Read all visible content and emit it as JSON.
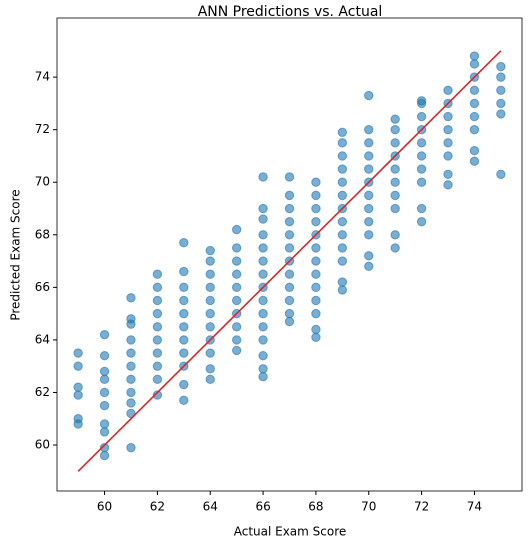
{
  "chart_data": {
    "type": "scatter",
    "title": "ANN Predictions vs. Actual",
    "xlabel": "Actual Exam Score",
    "ylabel": "Predicted Exam Score",
    "xlim": [
      58.2,
      75.8
    ],
    "ylim": [
      58.25,
      76.25
    ],
    "xticks": [
      60,
      62,
      64,
      66,
      68,
      70,
      72,
      74
    ],
    "yticks": [
      60,
      62,
      64,
      66,
      68,
      70,
      72,
      74
    ],
    "grid": false,
    "series": [
      {
        "color": "#1f77b4",
        "x": [
          59,
          59,
          59,
          59,
          59,
          59,
          60,
          60,
          60,
          60,
          60,
          60,
          60,
          60,
          60,
          60,
          61,
          61,
          61,
          61,
          61,
          61,
          61,
          61,
          61,
          61,
          61,
          62,
          62,
          62,
          62,
          62,
          62,
          62,
          62,
          62,
          62,
          63,
          63,
          63,
          63,
          63,
          63,
          63,
          63,
          63,
          63,
          63,
          64,
          64,
          64,
          64,
          64,
          64,
          64,
          64,
          64,
          64,
          64,
          65,
          65,
          65,
          65,
          65,
          65,
          65,
          65,
          65,
          65,
          66,
          66,
          66,
          66,
          66,
          66,
          66,
          66,
          66,
          66,
          66,
          66,
          66,
          66,
          66,
          67,
          67,
          67,
          67,
          67,
          67,
          67,
          67,
          67,
          67,
          67,
          67,
          68,
          68,
          68,
          68,
          68,
          68,
          68,
          68,
          68,
          68,
          68,
          68,
          68,
          69,
          69,
          69,
          69,
          69,
          69,
          69,
          69,
          69,
          69,
          69,
          69,
          69,
          70,
          70,
          70,
          70,
          70,
          70,
          70,
          70,
          70,
          70,
          70,
          70,
          71,
          71,
          71,
          71,
          71,
          71,
          71,
          71,
          71,
          71,
          72,
          72,
          72,
          72,
          72,
          72,
          72,
          72,
          72,
          72,
          73,
          73,
          73,
          73,
          73,
          73,
          73,
          73,
          74,
          74,
          74,
          74,
          74,
          74,
          74,
          74,
          74,
          75,
          75,
          75,
          75,
          75,
          75
        ],
        "y": [
          60.8,
          61,
          61.9,
          62.2,
          63,
          63.5,
          59.6,
          59.9,
          60.5,
          60.8,
          61.5,
          62,
          62.5,
          62.8,
          63.4,
          64.2,
          59.9,
          61.2,
          61.6,
          62,
          62.5,
          63,
          63.5,
          64,
          64.6,
          64.8,
          65.6,
          61.9,
          62.5,
          63,
          63.5,
          64,
          64.5,
          65,
          65.5,
          66,
          66.5,
          61.7,
          62.3,
          63,
          63.5,
          64,
          64.5,
          65,
          65.5,
          66,
          66.6,
          67.7,
          62.5,
          62.9,
          63.5,
          64,
          64.5,
          65,
          65.5,
          66,
          66.5,
          67,
          67.4,
          63.6,
          64,
          64.5,
          65,
          65.5,
          66,
          66.5,
          67,
          67.5,
          68.2,
          62.6,
          62.9,
          63.4,
          64,
          64.5,
          65,
          65.5,
          66,
          66.5,
          67,
          67.5,
          68,
          68.6,
          69,
          70.2,
          64.7,
          65,
          65.5,
          66,
          66.5,
          67,
          67.5,
          68,
          68.5,
          69,
          69.5,
          70.2,
          64.1,
          64.4,
          65,
          65.5,
          66,
          66.5,
          67,
          67.5,
          68,
          68.5,
          69,
          69.5,
          70,
          65.9,
          66.2,
          67,
          67.5,
          68,
          68.5,
          69,
          69.5,
          70,
          70.5,
          71,
          71.5,
          71.9,
          66.8,
          67.2,
          68,
          68.5,
          69,
          69.5,
          70,
          70.5,
          71,
          71.5,
          72,
          73.3,
          67.5,
          68,
          69,
          69.5,
          70,
          70.5,
          71,
          71.5,
          72,
          72.4,
          68.5,
          69,
          70,
          70.5,
          71,
          71.5,
          72,
          72.5,
          73,
          73.1,
          69.9,
          70.3,
          71,
          71.5,
          72,
          72.5,
          73,
          73.5,
          70.8,
          71.2,
          72,
          72.5,
          73,
          73.5,
          74,
          74.5,
          74.8,
          70.3,
          72.6,
          73,
          73.5,
          74,
          74.4
        ]
      }
    ],
    "line": {
      "color": "#d62728",
      "x": [
        59,
        75
      ],
      "y": [
        59,
        75
      ]
    }
  }
}
